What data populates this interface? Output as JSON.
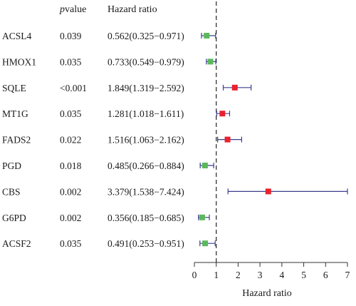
{
  "chart_data": {
    "type": "forest",
    "headers": {
      "p_prefix": "p",
      "p_suffix": "value",
      "hr": "Hazard ratio"
    },
    "xlabel": "Hazard ratio",
    "xlim": [
      0,
      7
    ],
    "xticks": [
      0,
      1,
      2,
      3,
      4,
      5,
      6,
      7
    ],
    "reference_line": 1,
    "colors": {
      "hr_above_1": "#e8222e",
      "hr_below_1": "#5cb85c",
      "ci_line": "#3b3f8f",
      "ref_line": "#333333"
    },
    "rows": [
      {
        "gene": "ACSL4",
        "pvalue": "0.039",
        "hr_text": "0.562(0.325−0.971)",
        "hr": 0.562,
        "lower": 0.325,
        "upper": 0.971
      },
      {
        "gene": "HMOX1",
        "pvalue": "0.035",
        "hr_text": "0.733(0.549−0.979)",
        "hr": 0.733,
        "lower": 0.549,
        "upper": 0.979
      },
      {
        "gene": "SQLE",
        "pvalue": "<0.001",
        "hr_text": "1.849(1.319−2.592)",
        "hr": 1.849,
        "lower": 1.319,
        "upper": 2.592
      },
      {
        "gene": "MT1G",
        "pvalue": "0.035",
        "hr_text": "1.281(1.018−1.611)",
        "hr": 1.281,
        "lower": 1.018,
        "upper": 1.611
      },
      {
        "gene": "FADS2",
        "pvalue": "0.022",
        "hr_text": "1.516(1.063−2.162)",
        "hr": 1.516,
        "lower": 1.063,
        "upper": 2.162
      },
      {
        "gene": "PGD",
        "pvalue": "0.018",
        "hr_text": "0.485(0.266−0.884)",
        "hr": 0.485,
        "lower": 0.266,
        "upper": 0.884
      },
      {
        "gene": "CBS",
        "pvalue": "0.002",
        "hr_text": "3.379(1.538−7.424)",
        "hr": 3.379,
        "lower": 1.538,
        "upper": 7.424
      },
      {
        "gene": "G6PD",
        "pvalue": "0.002",
        "hr_text": "0.356(0.185−0.685)",
        "hr": 0.356,
        "lower": 0.185,
        "upper": 0.685
      },
      {
        "gene": "ACSF2",
        "pvalue": "0.035",
        "hr_text": "0.491(0.253−0.951)",
        "hr": 0.491,
        "lower": 0.253,
        "upper": 0.951
      }
    ]
  }
}
